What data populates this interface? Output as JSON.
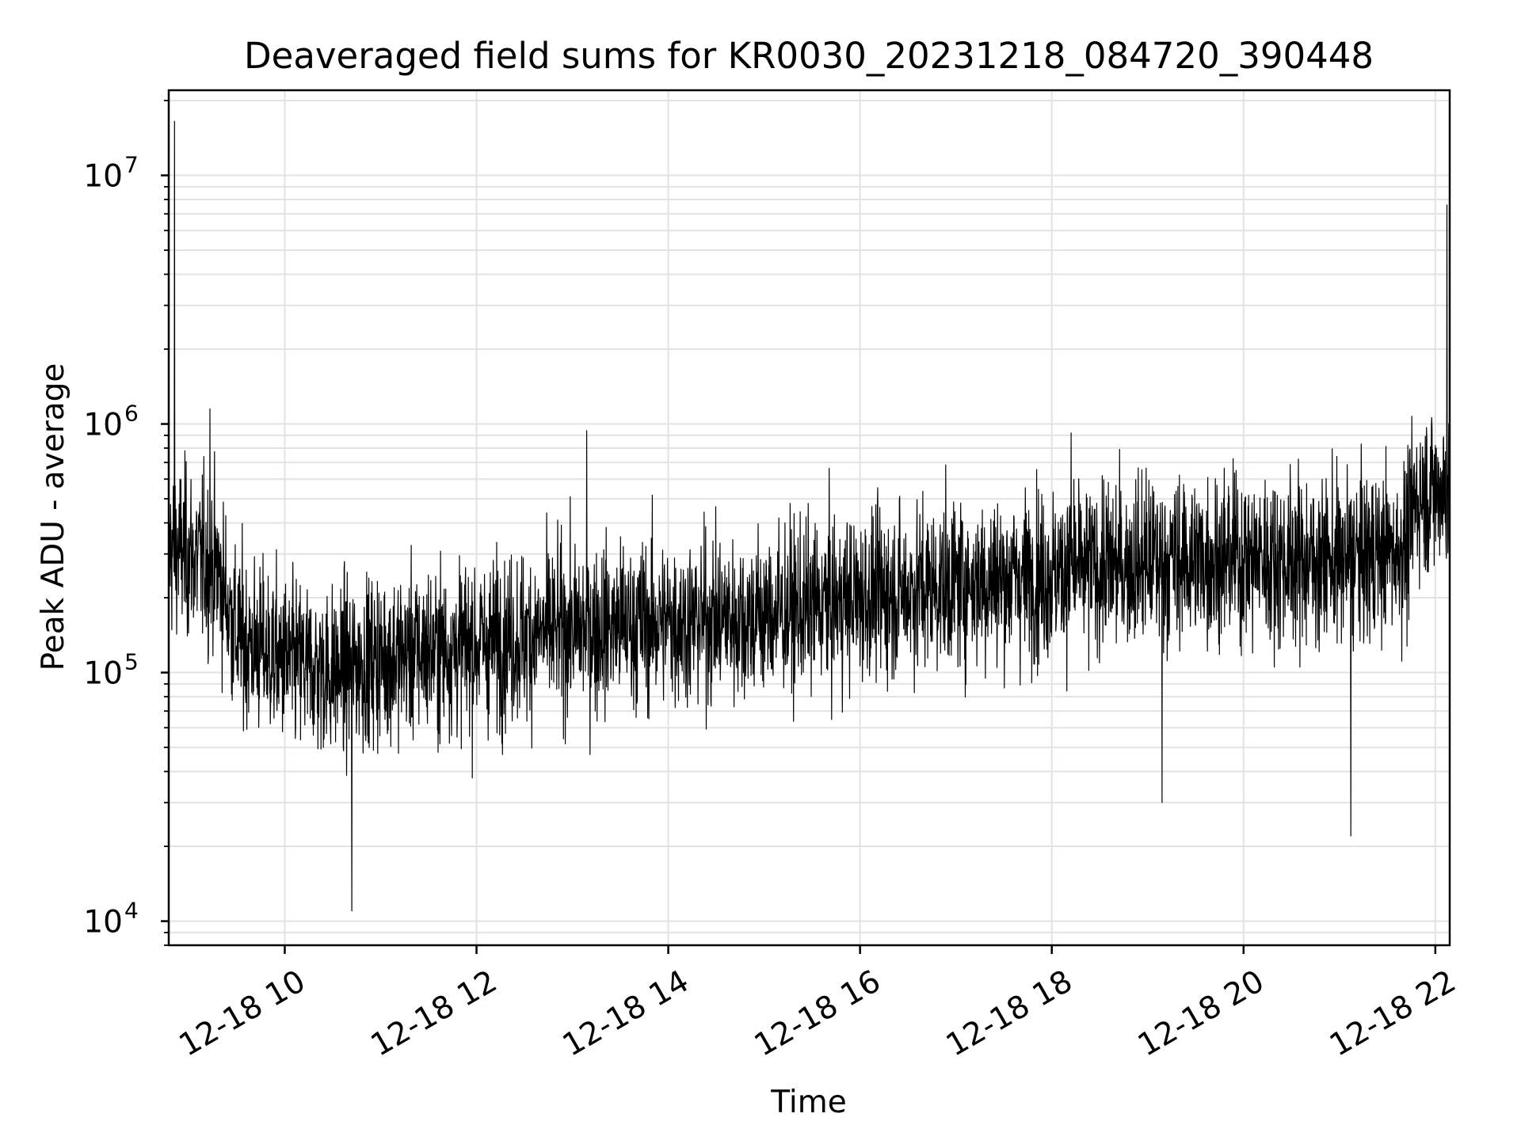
{
  "chart_data": {
    "type": "line",
    "title": "Deaveraged field sums for KR0030_20231218_084720_390448",
    "xlabel": "Time",
    "ylabel": "Peak ADU - average",
    "yscale": "log",
    "ylim": [
      8000,
      22000000
    ],
    "xlim_hours": [
      8.79,
      22.15
    ],
    "grid": true,
    "legend": "none",
    "line_color": "#000000",
    "grid_color": "#e3e3e3",
    "x_ticks": [
      {
        "hour": 10,
        "label": "12-18 10"
      },
      {
        "hour": 12,
        "label": "12-18 12"
      },
      {
        "hour": 14,
        "label": "12-18 14"
      },
      {
        "hour": 16,
        "label": "12-18 16"
      },
      {
        "hour": 18,
        "label": "12-18 18"
      },
      {
        "hour": 20,
        "label": "12-18 20"
      },
      {
        "hour": 22,
        "label": "12-18 22"
      }
    ],
    "y_ticks": [
      {
        "value": 10000,
        "base": "10",
        "exp": "4"
      },
      {
        "value": 100000,
        "base": "10",
        "exp": "5"
      },
      {
        "value": 1000000,
        "base": "10",
        "exp": "6"
      },
      {
        "value": 10000000,
        "base": "10",
        "exp": "7"
      }
    ],
    "series": [
      {
        "name": "Peak ADU - average",
        "trend": {
          "hours": [
            8.79,
            9.0,
            9.3,
            9.5,
            10.0,
            10.5,
            11.0,
            12.0,
            13.0,
            14.0,
            15.0,
            16.0,
            17.0,
            18.0,
            19.0,
            20.0,
            21.0,
            21.7,
            21.8,
            22.15
          ],
          "values": [
            320000,
            300000,
            260000,
            140000,
            110000,
            100000,
            115000,
            130000,
            150000,
            160000,
            170000,
            200000,
            230000,
            250000,
            280000,
            290000,
            280000,
            320000,
            520000,
            560000
          ]
        },
        "spikes": [
          {
            "hour": 8.85,
            "value": 16500000
          },
          {
            "hour": 9.22,
            "value": 1150000
          },
          {
            "hour": 10.7,
            "value": 11000
          },
          {
            "hour": 13.15,
            "value": 940000
          },
          {
            "hour": 18.2,
            "value": 920000
          },
          {
            "hour": 19.15,
            "value": 30000
          },
          {
            "hour": 21.12,
            "value": 22000
          },
          {
            "hour": 22.12,
            "value": 7600000
          }
        ]
      }
    ]
  }
}
